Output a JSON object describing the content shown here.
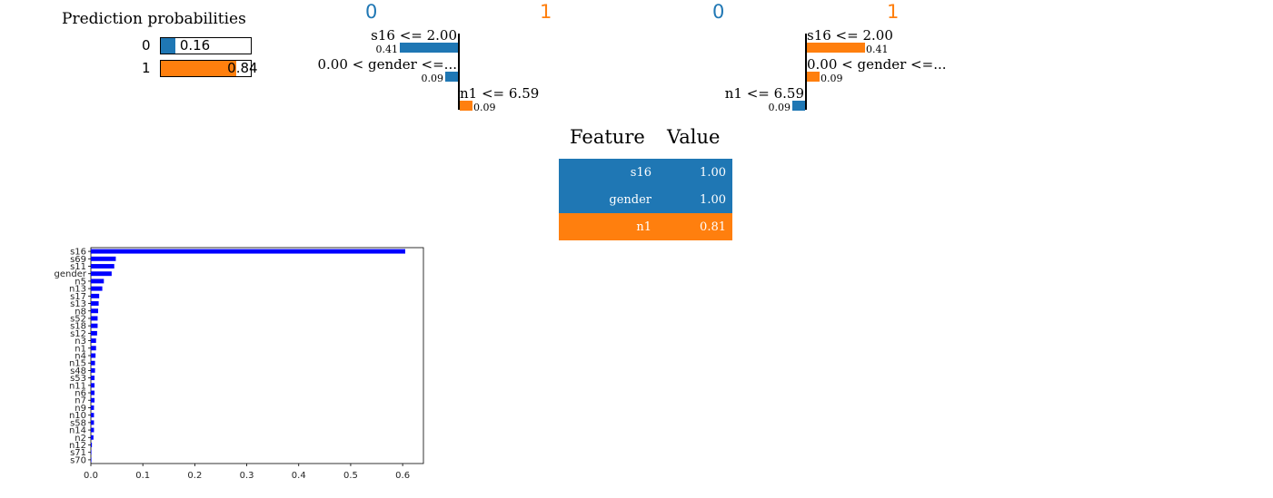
{
  "prediction_probabilities": {
    "title": "Prediction probabilities",
    "rows": [
      {
        "class": "0",
        "value": "0.16",
        "prob": 0.16,
        "color": "#1f77b4"
      },
      {
        "class": "1",
        "value": "0.84",
        "prob": 0.84,
        "color": "#ff7f0e"
      }
    ]
  },
  "explanation_left": {
    "class_neg": "0",
    "class_pos": "1",
    "items": [
      {
        "label": "s16 <= 2.00",
        "weight": "0.41",
        "value": -0.41,
        "color": "#1f77b4"
      },
      {
        "label": "0.00 < gender <=...",
        "weight": "0.09",
        "value": -0.09,
        "color": "#1f77b4"
      },
      {
        "label": "n1 <= 6.59",
        "weight": "0.09",
        "value": 0.09,
        "color": "#ff7f0e"
      }
    ]
  },
  "explanation_right": {
    "class_neg": "0",
    "class_pos": "1",
    "items": [
      {
        "label": "s16 <= 2.00",
        "weight": "0.41",
        "value": 0.41,
        "color": "#ff7f0e"
      },
      {
        "label": "0.00 < gender <=...",
        "weight": "0.09",
        "value": 0.09,
        "color": "#ff7f0e"
      },
      {
        "label": "n1 <= 6.59",
        "weight": "0.09",
        "value": -0.09,
        "color": "#1f77b4"
      }
    ]
  },
  "feature_table": {
    "header_feature": "Feature",
    "header_value": "Value",
    "rows": [
      {
        "feature": "s16",
        "value": "1.00",
        "color": "#1f77b4"
      },
      {
        "feature": "gender",
        "value": "1.00",
        "color": "#1f77b4"
      },
      {
        "feature": "n1",
        "value": "0.81",
        "color": "#ff7f0e"
      }
    ]
  },
  "chart_data": {
    "type": "bar",
    "orientation": "horizontal",
    "bar_color": "#0000ff",
    "categories": [
      "s16",
      "s69",
      "s11",
      "gender",
      "n5",
      "n13",
      "s17",
      "s13",
      "n8",
      "s52",
      "s18",
      "s12",
      "n3",
      "n1",
      "n4",
      "n15",
      "s48",
      "s53",
      "n11",
      "n6",
      "n7",
      "n9",
      "n10",
      "s58",
      "n14",
      "n2",
      "n12",
      "s71",
      "s70"
    ],
    "values": [
      0.605,
      0.048,
      0.045,
      0.04,
      0.025,
      0.022,
      0.016,
      0.015,
      0.014,
      0.013,
      0.013,
      0.012,
      0.01,
      0.01,
      0.009,
      0.008,
      0.008,
      0.007,
      0.007,
      0.007,
      0.007,
      0.006,
      0.006,
      0.006,
      0.006,
      0.005,
      0.002,
      0.001,
      0.001
    ],
    "xlim": [
      0,
      0.64
    ],
    "xticks": [
      "0.0",
      "0.1",
      "0.2",
      "0.3",
      "0.4",
      "0.5",
      "0.6"
    ]
  }
}
